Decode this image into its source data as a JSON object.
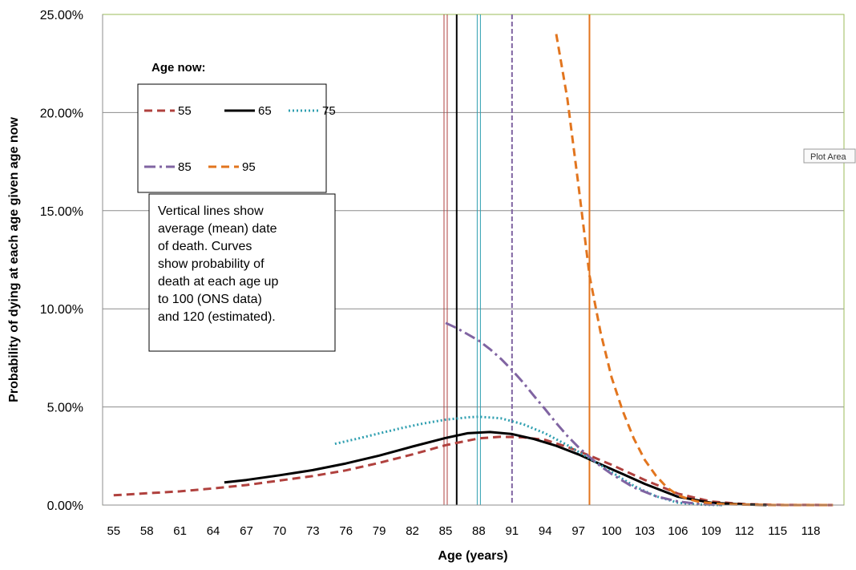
{
  "chart_data": {
    "type": "line",
    "xlabel": "Age (years)",
    "ylabel": "Probability of dying at each age given age now",
    "xlim": [
      54,
      121
    ],
    "ylim": [
      0,
      0.25
    ],
    "y_ticks": [
      0,
      0.05,
      0.1,
      0.15,
      0.2,
      0.25
    ],
    "y_tick_labels": [
      "0.00%",
      "5.00%",
      "10.00%",
      "15.00%",
      "20.00%",
      "25.00%"
    ],
    "x_ticks": [
      55,
      58,
      61,
      64,
      67,
      70,
      73,
      76,
      79,
      82,
      85,
      88,
      91,
      94,
      97,
      100,
      103,
      106,
      109,
      112,
      115,
      118
    ],
    "x_tick_labels": [
      "55",
      "58",
      "61",
      "64",
      "67",
      "70",
      "73",
      "76",
      "79",
      "82",
      "85",
      "88",
      "91",
      "94",
      "97",
      "100",
      "103",
      "106",
      "109",
      "112",
      "115",
      "118"
    ],
    "grid": "horizontal",
    "legend_title": "Age now:",
    "legend_position": "top-left",
    "series": [
      {
        "name": "55",
        "color": "#b0413e",
        "dash": "dashed",
        "x": [
          55,
          58,
          61,
          64,
          67,
          70,
          73,
          76,
          79,
          82,
          85,
          88,
          90,
          92,
          94,
          96,
          98,
          100,
          103,
          106,
          109,
          112,
          115,
          120
        ],
        "y": [
          0.005,
          0.006,
          0.007,
          0.0085,
          0.0102,
          0.0125,
          0.0148,
          0.0177,
          0.0215,
          0.0258,
          0.0305,
          0.034,
          0.0348,
          0.0345,
          0.0332,
          0.0296,
          0.0252,
          0.0205,
          0.0128,
          0.0058,
          0.0018,
          0.0005,
          0.0001,
          0.0
        ]
      },
      {
        "name": "65",
        "color": "#000000",
        "dash": "solid",
        "x": [
          65,
          67,
          70,
          73,
          76,
          79,
          82,
          85,
          87,
          89,
          91,
          93,
          95,
          97,
          99,
          101,
          103,
          106,
          109,
          112,
          114
        ],
        "y": [
          0.0115,
          0.0128,
          0.0152,
          0.0178,
          0.0212,
          0.0252,
          0.0298,
          0.0342,
          0.0366,
          0.0372,
          0.0362,
          0.0336,
          0.0302,
          0.0258,
          0.0208,
          0.0158,
          0.0108,
          0.0042,
          0.0012,
          0.0003,
          0.0
        ]
      },
      {
        "name": "75",
        "color": "#2f9fb0",
        "dash": "dotted",
        "x": [
          75,
          77,
          79,
          81,
          83,
          85,
          87,
          88,
          90,
          92,
          94,
          96,
          98,
          100,
          102,
          104,
          106,
          108,
          110
        ],
        "y": [
          0.0312,
          0.0338,
          0.0365,
          0.0392,
          0.0416,
          0.0435,
          0.0447,
          0.045,
          0.0442,
          0.0412,
          0.0365,
          0.0305,
          0.0238,
          0.0168,
          0.0098,
          0.0045,
          0.0012,
          0.0002,
          0.0
        ]
      },
      {
        "name": "85",
        "color": "#8064a2",
        "dash": "dashdot",
        "x": [
          85,
          86,
          87,
          88,
          89,
          90,
          91,
          92,
          93,
          94,
          95,
          96,
          97,
          98,
          99,
          100,
          102,
          104,
          106,
          108,
          110
        ],
        "y": [
          0.0928,
          0.0902,
          0.087,
          0.0838,
          0.0795,
          0.0745,
          0.0688,
          0.0625,
          0.0555,
          0.0488,
          0.0418,
          0.0352,
          0.0295,
          0.0245,
          0.0198,
          0.0158,
          0.009,
          0.0045,
          0.0018,
          0.0005,
          0.0
        ]
      },
      {
        "name": "95",
        "color": "#e2751e",
        "dash": "dashed",
        "x": [
          95,
          96,
          97,
          98,
          99,
          100,
          101,
          102,
          103,
          104,
          105,
          106,
          107,
          108,
          110,
          112,
          115,
          120
        ],
        "y": [
          0.24,
          0.207,
          0.163,
          0.117,
          0.088,
          0.065,
          0.048,
          0.034,
          0.023,
          0.015,
          0.009,
          0.005,
          0.003,
          0.0015,
          0.0005,
          0.0002,
          0.0,
          0.0
        ]
      }
    ],
    "mean_lines": [
      {
        "series": "55",
        "x": 85,
        "color": "#b0413e",
        "style": "double"
      },
      {
        "series": "65",
        "x": 86,
        "color": "#000000",
        "style": "solid"
      },
      {
        "series": "75",
        "x": 88,
        "color": "#2f9fb0",
        "style": "double"
      },
      {
        "series": "85",
        "x": 91,
        "color": "#8064a2",
        "style": "dashed"
      },
      {
        "series": "95",
        "x": 98,
        "color": "#e2751e",
        "style": "solid"
      }
    ],
    "annotation": [
      "Vertical lines show",
      "average (mean) date",
      "of death. Curves",
      "show probability of",
      "death at each age up",
      "to 100 (ONS data)",
      "and 120 (estimated)."
    ],
    "tooltip": "Plot Area"
  }
}
